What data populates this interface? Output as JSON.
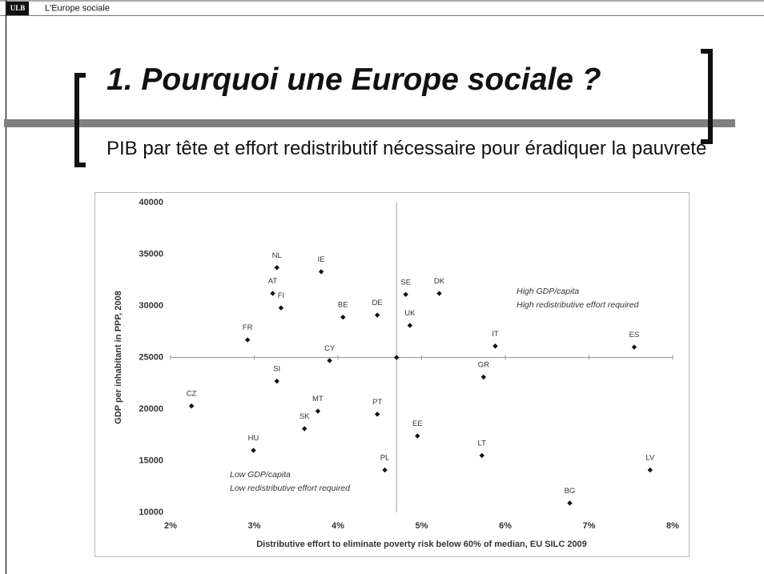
{
  "header": {
    "logo": "ULB",
    "title": "L'Europe sociale"
  },
  "slide": {
    "title": "1. Pourquoi une Europe sociale ?",
    "subtitle": "PIB par tête et effort redistributif nécessaire pour éradiquer la pauvreté"
  },
  "chart_data": {
    "type": "scatter",
    "x_label": "Distributive effort to eliminate poverty risk below 60% of median, EU SILC 2009",
    "y_label": "GDP per inhabitant in PPP, 2008",
    "labels": [
      "NL",
      "IE",
      "AT",
      "FI",
      "SE",
      "DK",
      "BE",
      "DE",
      "UK",
      "FR",
      "IT",
      "ES",
      "CY",
      null,
      "GR",
      "SI",
      "CZ",
      "MT",
      "PT",
      "SK",
      "EE",
      "HU",
      "LT",
      "PL",
      "LV",
      "BG"
    ],
    "x": [
      3.27,
      3.8,
      3.22,
      3.32,
      4.81,
      5.21,
      4.06,
      4.47,
      4.86,
      2.92,
      5.88,
      7.54,
      3.9,
      4.7,
      5.74,
      3.27,
      2.25,
      3.76,
      4.47,
      3.6,
      4.95,
      2.99,
      5.72,
      4.56,
      7.73,
      6.77
    ],
    "values": [
      33700,
      33300,
      31200,
      29800,
      31100,
      31200,
      28900,
      29100,
      28100,
      26700,
      26100,
      26000,
      24700,
      25000,
      23100,
      22700,
      20300,
      19800,
      19500,
      18100,
      17400,
      16000,
      15500,
      14100,
      14100,
      10900
    ],
    "color": "#111111",
    "reference_lines": {
      "x": 4.7,
      "y": 25000
    },
    "annotations": [
      "High GDP/capita",
      "High redistributive effort required",
      "Low GDP/capita",
      "Low redistributive effort required"
    ],
    "xlim": [
      2,
      8
    ],
    "xticks": [
      {
        "value": 2,
        "label": "2%"
      },
      {
        "value": 3,
        "label": "3%"
      },
      {
        "value": 4,
        "label": "4%"
      },
      {
        "value": 5,
        "label": "5%"
      },
      {
        "value": 6,
        "label": "6%"
      },
      {
        "value": 7,
        "label": "7%"
      },
      {
        "value": 8,
        "label": "8%"
      }
    ],
    "ylim": [
      10000,
      40000
    ],
    "yticks": [
      10000,
      15000,
      20000,
      25000,
      30000,
      35000,
      40000
    ]
  }
}
